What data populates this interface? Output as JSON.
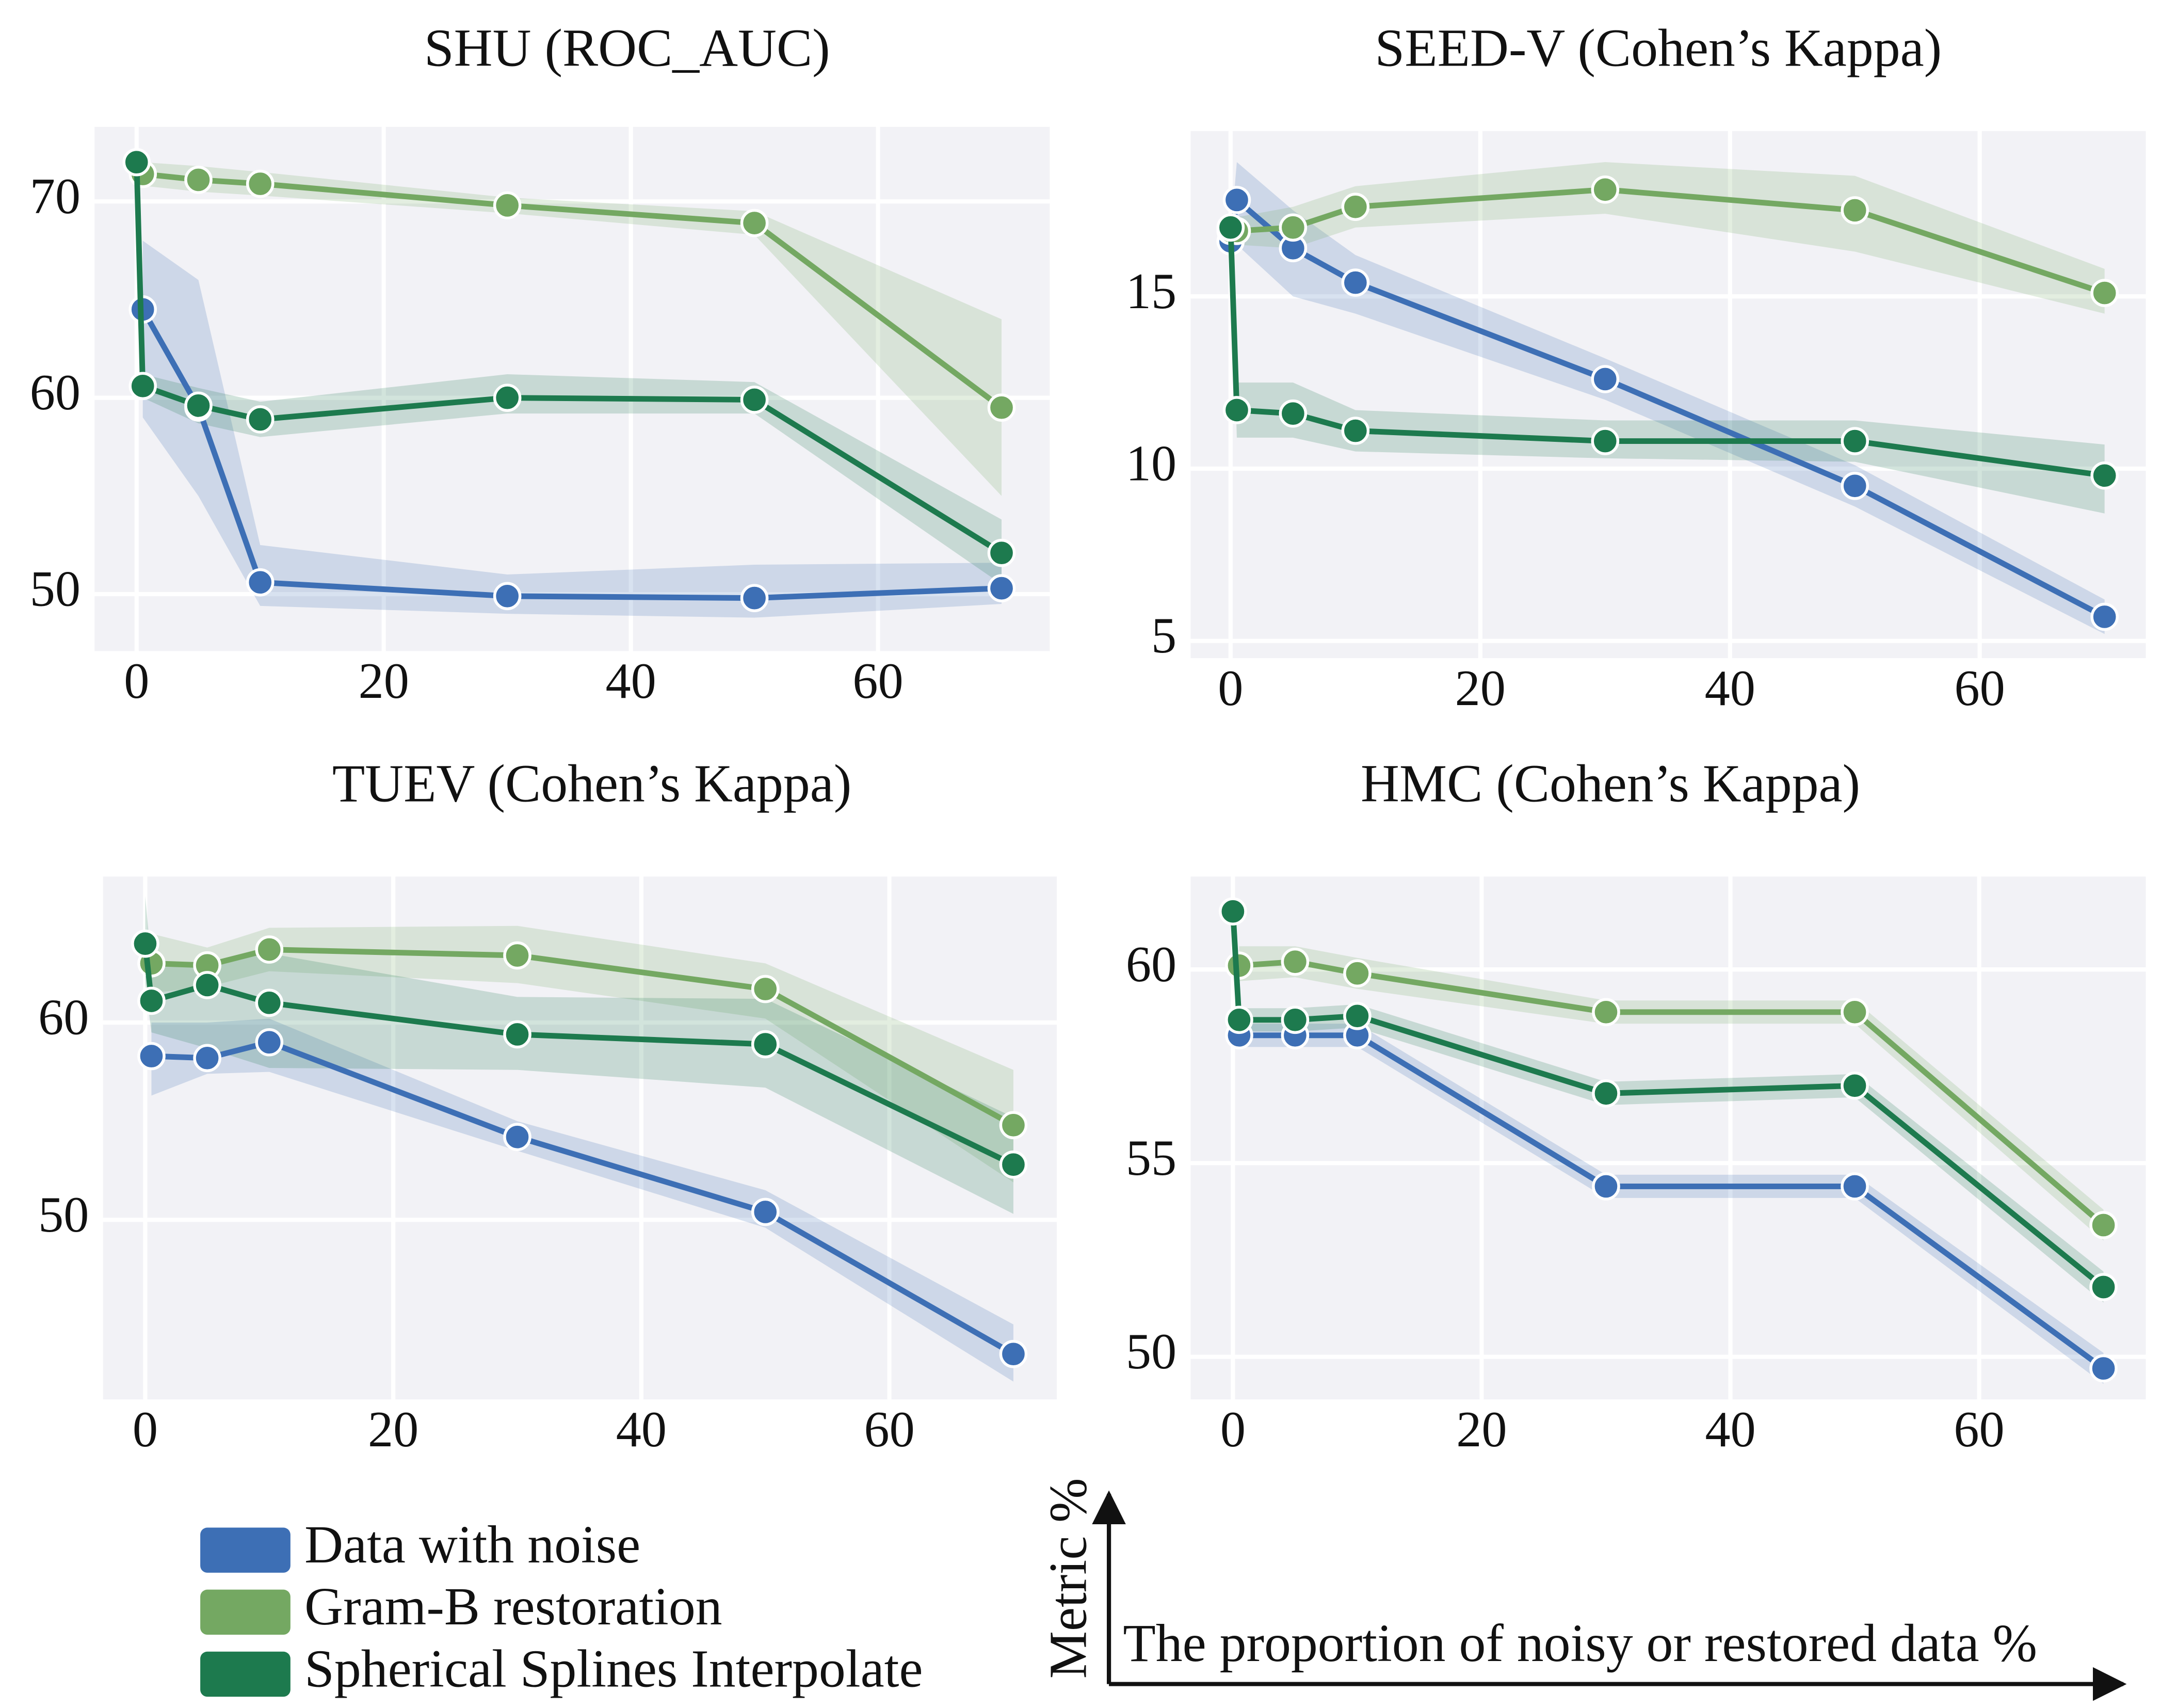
{
  "chart_data": [
    {
      "type": "line",
      "title": "SHU (ROC_AUC)",
      "x": [
        0,
        0.5,
        5,
        10,
        30,
        50,
        70
      ],
      "xlim": [
        -3.4,
        73.9
      ],
      "xticks": [
        0,
        20,
        40,
        60
      ],
      "ylim": [
        47.1,
        73.8
      ],
      "yticks": [
        50,
        60,
        70
      ],
      "grid": true,
      "series": [
        {
          "name": "Data with noise",
          "color": "#3d6fb5",
          "values": [
            null,
            64.5,
            59.5,
            50.6,
            49.9,
            49.8,
            50.3
          ],
          "upper": [
            null,
            68,
            66,
            52.5,
            51,
            51.5,
            51.6
          ],
          "lower": [
            null,
            59,
            55,
            49.4,
            49,
            48.8,
            49.5
          ]
        },
        {
          "name": "Gram-B restoration",
          "color": "#74a862",
          "values": [
            null,
            71.4,
            71.1,
            70.9,
            69.8,
            68.9,
            59.5
          ],
          "upper": [
            null,
            72,
            71.8,
            71.5,
            70.2,
            69.5,
            64
          ],
          "lower": [
            null,
            70.8,
            70.5,
            70.3,
            69.4,
            68.3,
            55
          ]
        },
        {
          "name": "Spherical Splines Interpolate",
          "color": "#1d7a4e",
          "values": [
            72,
            60.6,
            59.6,
            58.9,
            60.0,
            59.9,
            52.1
          ],
          "upper": [
            72.5,
            61.2,
            60.5,
            59.8,
            61.2,
            60.8,
            53.8
          ],
          "lower": [
            71.5,
            60,
            58.7,
            58,
            59.2,
            59.2,
            50.5
          ]
        }
      ]
    },
    {
      "type": "line",
      "title": "SEED-V (Cohen’s Kappa)",
      "x": [
        0,
        0.5,
        5,
        10,
        30,
        50,
        70
      ],
      "xlim": [
        -3.2,
        73.3
      ],
      "xticks": [
        0,
        20,
        40,
        60
      ],
      "ylim": [
        4.5,
        19.8
      ],
      "yticks": [
        5,
        10,
        15
      ],
      "grid": true,
      "series": [
        {
          "name": "Data with noise",
          "color": "#3d6fb5",
          "values": [
            16.6,
            17.8,
            16.4,
            15.4,
            12.6,
            9.5,
            5.7
          ],
          "upper": [
            16.8,
            18.9,
            17.5,
            16.2,
            13.2,
            10.1,
            6.2
          ],
          "lower": [
            16.2,
            16.5,
            15.0,
            14.5,
            12,
            8.9,
            5.2
          ]
        },
        {
          "name": "Gram-B restoration",
          "color": "#74a862",
          "values": [
            16.9,
            16.9,
            17.0,
            17.6,
            18.1,
            17.5,
            15.1
          ],
          "upper": [
            17.2,
            17.3,
            17.6,
            18.2,
            18.9,
            18.5,
            15.8
          ],
          "lower": [
            16.6,
            16.5,
            16.4,
            17.0,
            17.4,
            16.3,
            14.5
          ]
        },
        {
          "name": "Spherical Splines Interpolate",
          "color": "#1d7a4e",
          "values": [
            17.0,
            11.7,
            11.6,
            11.1,
            10.8,
            10.8,
            9.8
          ],
          "upper": [
            17.3,
            12.5,
            12.5,
            11.7,
            11.4,
            11.4,
            10.7
          ],
          "lower": [
            16.7,
            10.9,
            10.9,
            10.5,
            10.3,
            10.2,
            8.7
          ]
        }
      ]
    },
    {
      "type": "line",
      "title": "TUEV (Cohen’s Kappa)",
      "x": [
        0,
        0.5,
        5,
        10,
        30,
        50,
        70
      ],
      "xlim": [
        -3.4,
        73.5
      ],
      "xticks": [
        0,
        20,
        40,
        60
      ],
      "ylim": [
        40.9,
        67.4
      ],
      "yticks": [
        50,
        60
      ],
      "grid": true,
      "series": [
        {
          "name": "Data with noise",
          "color": "#3d6fb5",
          "values": [
            null,
            58.3,
            58.2,
            59.0,
            54.2,
            50.4,
            43.2
          ],
          "upper": [
            null,
            60,
            60,
            60.2,
            55,
            51.5,
            44.7
          ],
          "lower": [
            null,
            56.3,
            57.4,
            57.5,
            53.5,
            49.6,
            41.8
          ]
        },
        {
          "name": "Gram-B restoration",
          "color": "#74a862",
          "values": [
            null,
            63.0,
            62.9,
            63.7,
            63.4,
            61.7,
            54.8
          ],
          "upper": [
            null,
            64.5,
            63.8,
            64.8,
            64.9,
            63,
            57.6
          ],
          "lower": [
            null,
            61.5,
            61.8,
            62.6,
            62,
            60.2,
            51.9
          ]
        },
        {
          "name": "Spherical Splines Interpolate",
          "color": "#1d7a4e",
          "values": [
            64.0,
            61.1,
            61.9,
            61.0,
            59.4,
            58.9,
            52.8
          ],
          "upper": [
            66.4,
            63,
            63,
            63.5,
            61.3,
            61.2,
            55.2
          ],
          "lower": [
            62,
            59.5,
            58.7,
            57.7,
            57.6,
            56.7,
            50.3
          ]
        }
      ]
    },
    {
      "type": "line",
      "title": "HMC (Cohen’s Kappa)",
      "x": [
        0,
        0.5,
        5,
        10,
        30,
        50,
        70
      ],
      "xlim": [
        -3.4,
        73.4
      ],
      "xticks": [
        0,
        20,
        40,
        60
      ],
      "ylim": [
        48.9,
        62.4
      ],
      "yticks": [
        50,
        55,
        60
      ],
      "grid": true,
      "series": [
        {
          "name": "Data with noise",
          "color": "#3d6fb5",
          "values": [
            null,
            58.3,
            58.3,
            58.3,
            54.4,
            54.4,
            49.7
          ],
          "upper": [
            null,
            58.6,
            58.6,
            58.6,
            54.7,
            54.7,
            50.1
          ],
          "lower": [
            null,
            58.0,
            58.0,
            58.0,
            54.1,
            54.1,
            49.3
          ]
        },
        {
          "name": "Gram-B restoration",
          "color": "#74a862",
          "values": [
            null,
            60.1,
            60.2,
            59.9,
            58.9,
            58.9,
            53.4
          ],
          "upper": [
            null,
            60.6,
            60.6,
            60.3,
            59.2,
            59.2,
            53.8
          ],
          "lower": [
            null,
            59.7,
            59.8,
            59.5,
            58.6,
            58.6,
            53.0
          ]
        },
        {
          "name": "Spherical Splines Interpolate",
          "color": "#1d7a4e",
          "values": [
            61.5,
            58.7,
            58.7,
            58.8,
            56.8,
            57.0,
            51.8
          ],
          "upper": [
            61.7,
            59.0,
            59.0,
            59.1,
            57.1,
            57.3,
            52.2
          ],
          "lower": [
            61.3,
            58.4,
            58.4,
            58.5,
            56.5,
            56.7,
            51.4
          ]
        }
      ]
    }
  ],
  "axis_key": {
    "y_label": "Metric %",
    "x_label": "The proportion of noisy or restored data %"
  }
}
